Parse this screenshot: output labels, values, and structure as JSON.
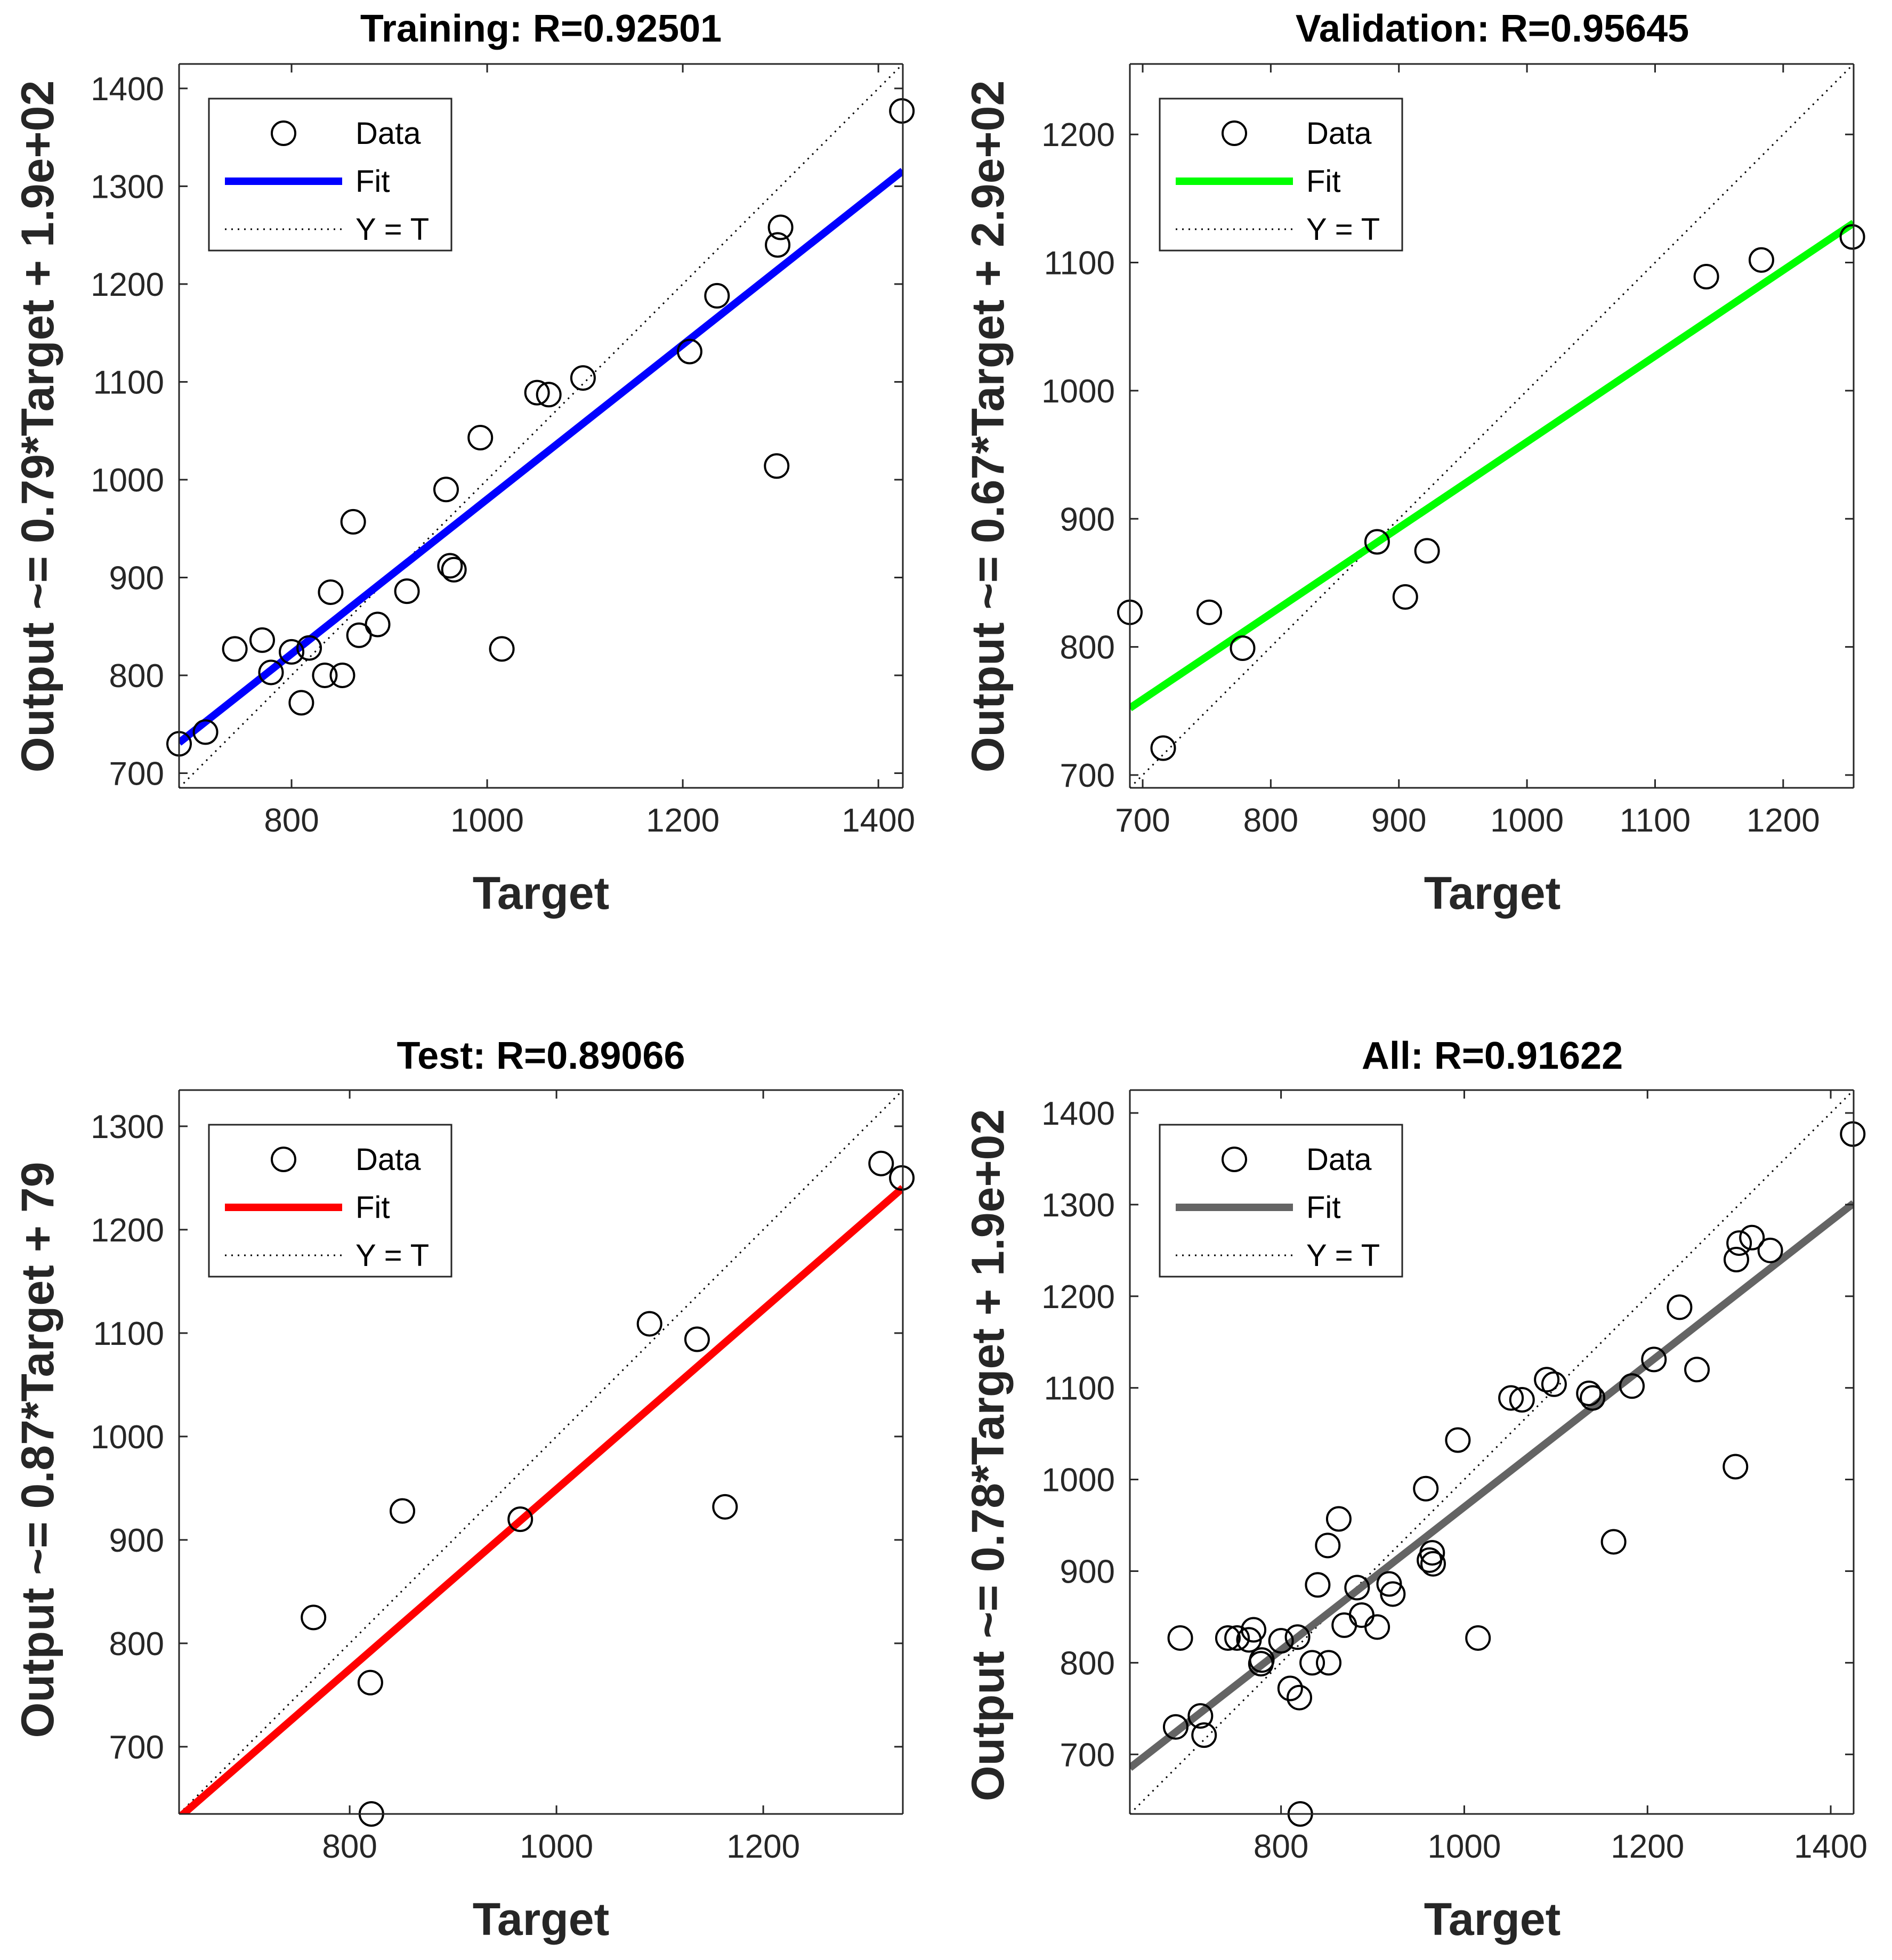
{
  "chart_data": [
    {
      "type": "scatter",
      "title": "Training: R=0.92501",
      "xlabel": "Target",
      "ylabel": "Output ~= 0.79*Target + 1.9e+02",
      "xlim": [
        685,
        1425
      ],
      "ylim": [
        685,
        1425
      ],
      "xticks": [
        800,
        1000,
        1200,
        1400
      ],
      "yticks": [
        700,
        800,
        900,
        1000,
        1100,
        1200,
        1300,
        1400
      ],
      "fit": {
        "slope": 0.79,
        "intercept": 190,
        "color": "#0000ff"
      },
      "legend": {
        "position": "top-left",
        "entries": [
          "Data",
          "Fit",
          "Y = T"
        ]
      },
      "points": [
        [
          685,
          730
        ],
        [
          712,
          742
        ],
        [
          742,
          827
        ],
        [
          770,
          836
        ],
        [
          779,
          803
        ],
        [
          800,
          824
        ],
        [
          810,
          772
        ],
        [
          818,
          828
        ],
        [
          834,
          800
        ],
        [
          840,
          885
        ],
        [
          852,
          800
        ],
        [
          863,
          957
        ],
        [
          869,
          841
        ],
        [
          888,
          852
        ],
        [
          918,
          886
        ],
        [
          958,
          990
        ],
        [
          962,
          912
        ],
        [
          966,
          908
        ],
        [
          993,
          1043
        ],
        [
          1015,
          827
        ],
        [
          1051,
          1089
        ],
        [
          1063,
          1087
        ],
        [
          1098,
          1104
        ],
        [
          1207,
          1131
        ],
        [
          1235,
          1188
        ],
        [
          1296,
          1014
        ],
        [
          1297,
          1240
        ],
        [
          1300,
          1258
        ],
        [
          1424,
          1377
        ]
      ]
    },
    {
      "type": "scatter",
      "title": "Validation: R=0.95645",
      "xlabel": "Target",
      "ylabel": "Output ~= 0.67*Target + 2.9e+02",
      "xlim": [
        690,
        1255
      ],
      "ylim": [
        690,
        1255
      ],
      "xticks": [
        700,
        800,
        900,
        1000,
        1100,
        1200
      ],
      "yticks": [
        700,
        800,
        900,
        1000,
        1100,
        1200
      ],
      "fit": {
        "slope": 0.67,
        "intercept": 290,
        "color": "#00ff00"
      },
      "legend": {
        "position": "top-left",
        "entries": [
          "Data",
          "Fit",
          "Y = T"
        ]
      },
      "points": [
        [
          690,
          827
        ],
        [
          716,
          721
        ],
        [
          752,
          827
        ],
        [
          778,
          799
        ],
        [
          883,
          882
        ],
        [
          905,
          839
        ],
        [
          922,
          875
        ],
        [
          1140,
          1089
        ],
        [
          1183,
          1102
        ],
        [
          1254,
          1120
        ]
      ]
    },
    {
      "type": "scatter",
      "title": "Test: R=0.89066",
      "xlabel": "Target",
      "ylabel": "Output ~= 0.87*Target + 79",
      "xlim": [
        635,
        1335
      ],
      "ylim": [
        635,
        1335
      ],
      "xticks": [
        800,
        1000,
        1200
      ],
      "yticks": [
        700,
        800,
        900,
        1000,
        1100,
        1200,
        1300
      ],
      "fit": {
        "slope": 0.87,
        "intercept": 79,
        "color": "#ff0000"
      },
      "legend": {
        "position": "top-left",
        "entries": [
          "Data",
          "Fit",
          "Y = T"
        ]
      },
      "points": [
        [
          765,
          825
        ],
        [
          820,
          762
        ],
        [
          821,
          635
        ],
        [
          851,
          928
        ],
        [
          965,
          920
        ],
        [
          1090,
          1109
        ],
        [
          1136,
          1094
        ],
        [
          1163,
          932
        ],
        [
          1314,
          1264
        ],
        [
          1334,
          1250
        ]
      ]
    },
    {
      "type": "scatter",
      "title": "All: R=0.91622",
      "xlabel": "Target",
      "ylabel": "Output ~= 0.78*Target + 1.9e+02",
      "xlim": [
        635,
        1425
      ],
      "ylim": [
        635,
        1425
      ],
      "xticks": [
        800,
        1000,
        1200,
        1400
      ],
      "yticks": [
        700,
        800,
        900,
        1000,
        1100,
        1200,
        1300,
        1400
      ],
      "fit": {
        "slope": 0.78,
        "intercept": 190,
        "color": "#646464"
      },
      "legend": {
        "position": "top-left",
        "entries": [
          "Data",
          "Fit",
          "Y = T"
        ]
      },
      "points": [
        [
          685,
          730
        ],
        [
          690,
          827
        ],
        [
          712,
          742
        ],
        [
          716,
          721
        ],
        [
          742,
          827
        ],
        [
          752,
          827
        ],
        [
          770,
          836
        ],
        [
          765,
          825
        ],
        [
          778,
          799
        ],
        [
          779,
          803
        ],
        [
          800,
          824
        ],
        [
          810,
          772
        ],
        [
          818,
          828
        ],
        [
          820,
          762
        ],
        [
          821,
          635
        ],
        [
          834,
          800
        ],
        [
          840,
          885
        ],
        [
          851,
          928
        ],
        [
          852,
          800
        ],
        [
          863,
          957
        ],
        [
          869,
          841
        ],
        [
          883,
          882
        ],
        [
          888,
          852
        ],
        [
          905,
          839
        ],
        [
          918,
          886
        ],
        [
          922,
          875
        ],
        [
          958,
          990
        ],
        [
          962,
          912
        ],
        [
          966,
          908
        ],
        [
          965,
          920
        ],
        [
          993,
          1043
        ],
        [
          1015,
          827
        ],
        [
          1051,
          1089
        ],
        [
          1063,
          1087
        ],
        [
          1090,
          1109
        ],
        [
          1098,
          1104
        ],
        [
          1136,
          1094
        ],
        [
          1140,
          1089
        ],
        [
          1163,
          932
        ],
        [
          1183,
          1102
        ],
        [
          1207,
          1131
        ],
        [
          1235,
          1188
        ],
        [
          1254,
          1120
        ],
        [
          1296,
          1014
        ],
        [
          1297,
          1240
        ],
        [
          1300,
          1258
        ],
        [
          1314,
          1264
        ],
        [
          1334,
          1250
        ],
        [
          1424,
          1377
        ]
      ]
    }
  ]
}
